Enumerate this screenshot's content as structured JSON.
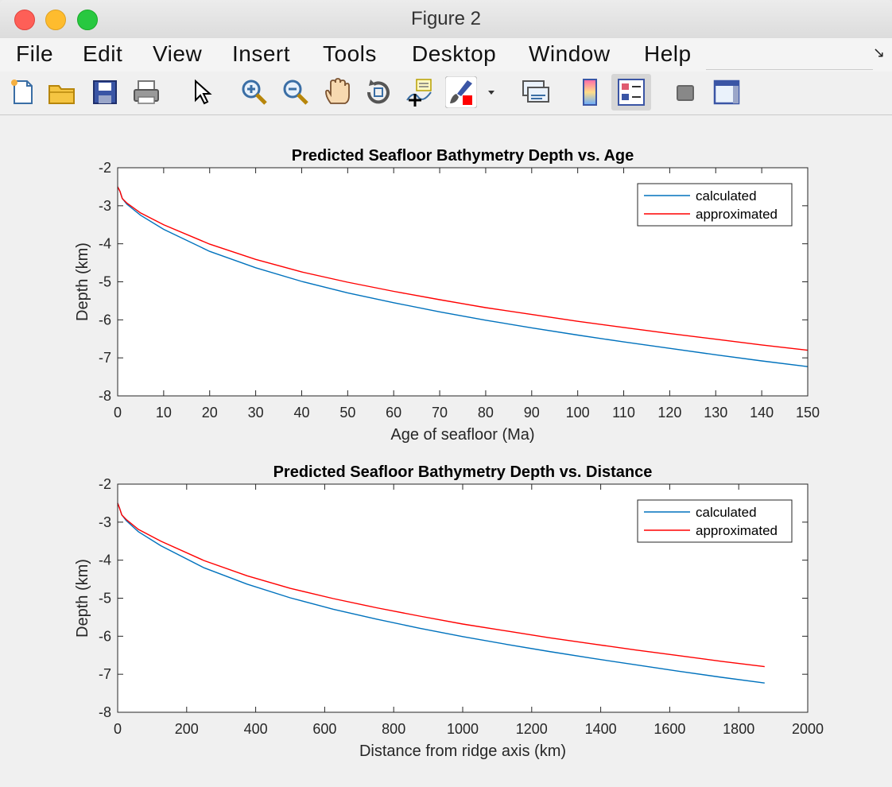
{
  "window": {
    "title": "Figure 2"
  },
  "menubar": {
    "items": [
      "File",
      "Edit",
      "View",
      "Insert",
      "Tools",
      "Desktop",
      "Window",
      "Help"
    ]
  },
  "toolbar": {
    "buttons": [
      "new-figure-icon",
      "open-file-icon",
      "save-icon",
      "print-icon",
      "pointer-icon",
      "zoom-in-icon",
      "zoom-out-icon",
      "pan-icon",
      "rotate-3d-icon",
      "data-cursor-icon",
      "brush-icon",
      "brush-dropdown-icon",
      "link-plot-icon",
      "colorbar-icon",
      "legend-icon",
      "hide-plot-tools-icon",
      "show-plot-tools-icon"
    ]
  },
  "chart_data": [
    {
      "type": "line",
      "title": "Predicted Seafloor Bathymetry Depth vs. Age",
      "xlabel": "Age of seafloor (Ma)",
      "ylabel": "Depth (km)",
      "xlim": [
        0,
        150
      ],
      "ylim": [
        -8,
        -2
      ],
      "xticks": [
        "0",
        "10",
        "20",
        "30",
        "40",
        "50",
        "60",
        "70",
        "80",
        "90",
        "100",
        "110",
        "120",
        "130",
        "140",
        "150"
      ],
      "yticks": [
        "-2",
        "-3",
        "-4",
        "-5",
        "-6",
        "-7",
        "-8"
      ],
      "legend": "top-right",
      "series": [
        {
          "name": "calculated",
          "color": "#0072bd",
          "x": [
            0,
            0.5,
            1,
            2,
            5,
            10,
            20,
            30,
            40,
            50,
            60,
            70,
            80,
            90,
            100,
            110,
            120,
            130,
            140,
            150
          ],
          "y": [
            -2.5,
            -2.62,
            -2.81,
            -2.96,
            -3.25,
            -3.62,
            -4.2,
            -4.63,
            -4.99,
            -5.29,
            -5.55,
            -5.79,
            -6.01,
            -6.21,
            -6.4,
            -6.58,
            -6.75,
            -6.92,
            -7.08,
            -7.23
          ]
        },
        {
          "name": "approximated",
          "color": "#ff0000",
          "x": [
            0,
            0.5,
            1,
            2,
            5,
            10,
            20,
            30,
            40,
            50,
            60,
            70,
            80,
            90,
            100,
            110,
            120,
            130,
            140,
            150
          ],
          "y": [
            -2.5,
            -2.62,
            -2.81,
            -2.93,
            -3.19,
            -3.5,
            -4.01,
            -4.41,
            -4.74,
            -5.01,
            -5.25,
            -5.47,
            -5.68,
            -5.86,
            -6.04,
            -6.2,
            -6.36,
            -6.51,
            -6.66,
            -6.8
          ]
        }
      ]
    },
    {
      "type": "line",
      "title": "Predicted Seafloor Bathymetry Depth vs. Distance",
      "xlabel": "Distance from ridge axis (km)",
      "ylabel": "Depth (km)",
      "xlim": [
        0,
        2000
      ],
      "ylim": [
        -8,
        -2
      ],
      "xticks": [
        "0",
        "200",
        "400",
        "600",
        "800",
        "1000",
        "1200",
        "1400",
        "1600",
        "1800",
        "2000"
      ],
      "yticks": [
        "-2",
        "-3",
        "-4",
        "-5",
        "-6",
        "-7",
        "-8"
      ],
      "legend": "top-right",
      "series": [
        {
          "name": "calculated",
          "color": "#0072bd",
          "x": [
            0,
            5,
            12,
            25,
            60,
            125,
            250,
            375,
            500,
            625,
            750,
            875,
            1000,
            1125,
            1250,
            1375,
            1500,
            1625,
            1750,
            1875
          ],
          "y": [
            -2.5,
            -2.62,
            -2.81,
            -2.96,
            -3.25,
            -3.62,
            -4.2,
            -4.63,
            -4.99,
            -5.29,
            -5.55,
            -5.79,
            -6.01,
            -6.21,
            -6.4,
            -6.58,
            -6.75,
            -6.92,
            -7.08,
            -7.23
          ]
        },
        {
          "name": "approximated",
          "color": "#ff0000",
          "x": [
            0,
            5,
            12,
            25,
            60,
            125,
            250,
            375,
            500,
            625,
            750,
            875,
            1000,
            1125,
            1250,
            1375,
            1500,
            1625,
            1750,
            1875
          ],
          "y": [
            -2.5,
            -2.62,
            -2.81,
            -2.93,
            -3.19,
            -3.5,
            -4.01,
            -4.41,
            -4.74,
            -5.01,
            -5.25,
            -5.47,
            -5.68,
            -5.86,
            -6.04,
            -6.2,
            -6.36,
            -6.51,
            -6.66,
            -6.8
          ]
        }
      ]
    }
  ]
}
